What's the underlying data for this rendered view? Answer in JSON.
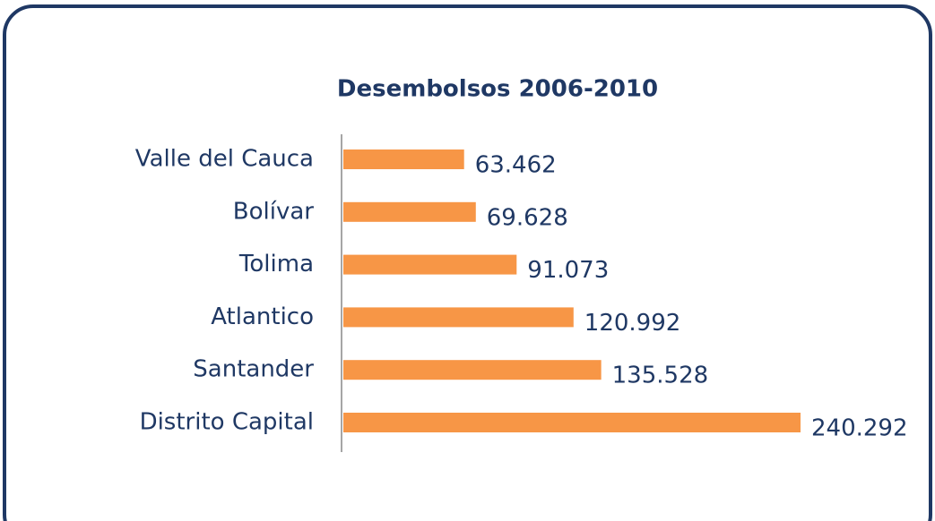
{
  "chart_data": {
    "type": "bar",
    "orientation": "horizontal",
    "title": "Desembolsos 2006-2010",
    "categories": [
      "Valle del Cauca",
      "Bolívar",
      "Tolima",
      "Atlantico",
      "Santander",
      "Distrito Capital"
    ],
    "values": [
      63.462,
      69.628,
      91.073,
      120.992,
      135.528,
      240.292
    ],
    "color": "#f79646"
  }
}
